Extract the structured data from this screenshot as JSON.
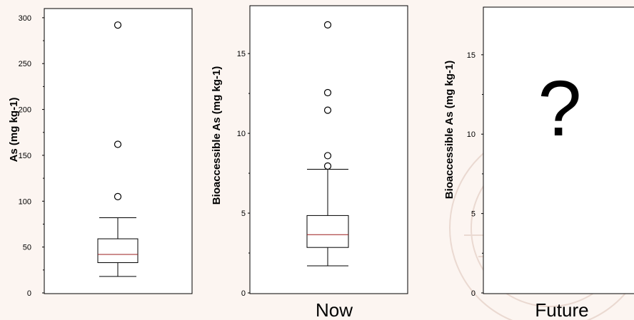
{
  "colors": {
    "background": "#fcf5f1",
    "plot_area": "#ffffff",
    "median_line": "#9b1c1c",
    "outline": "#000000"
  },
  "chart_data": [
    {
      "type": "box",
      "ylabel": "As (mg kg-1)",
      "caption": "",
      "ylim": [
        0,
        310
      ],
      "yticks": [
        0,
        50,
        100,
        150,
        200,
        250,
        300
      ],
      "box": {
        "whisker_low": 18,
        "q1": 33,
        "median": 42,
        "q3": 59,
        "whisker_high": 82
      },
      "outliers": [
        105,
        162,
        292
      ]
    },
    {
      "type": "box",
      "ylabel": "Bioaccessible As (mg kg-1)",
      "caption": "Now",
      "ylim": [
        0,
        18
      ],
      "yticks": [
        0,
        5,
        10,
        15
      ],
      "box": {
        "whisker_low": 1.7,
        "q1": 2.85,
        "median": 3.65,
        "q3": 4.85,
        "whisker_high": 7.75
      },
      "outliers": [
        7.95,
        8.6,
        11.45,
        12.55,
        16.8
      ]
    },
    {
      "type": "box",
      "ylabel": "Bioaccessible As (mg kg-1)",
      "caption": "Future",
      "ylim": [
        0,
        18
      ],
      "yticks": [
        0,
        5,
        10,
        15
      ],
      "box": null,
      "outliers": [],
      "overlay_text": "?"
    }
  ]
}
